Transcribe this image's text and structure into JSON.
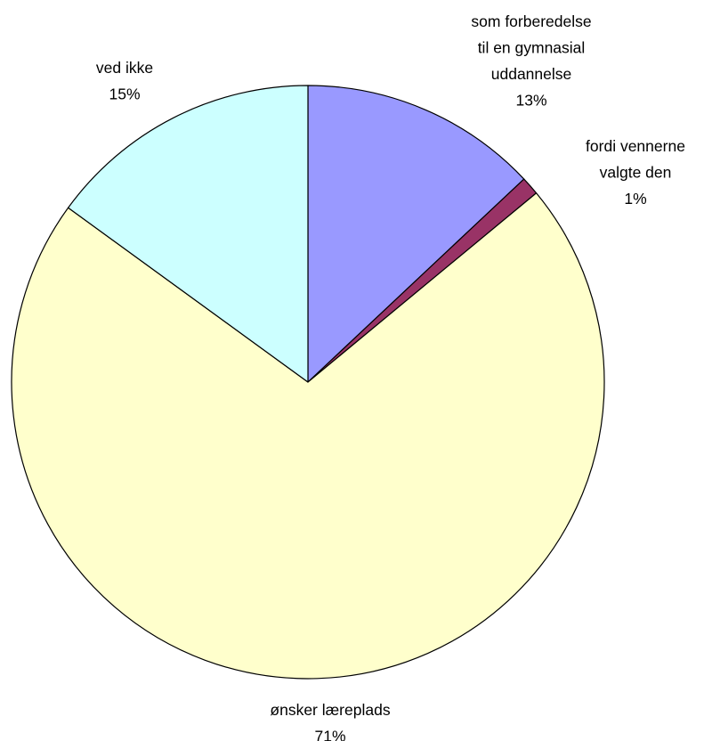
{
  "chart_data": {
    "type": "pie",
    "slices": [
      {
        "label_lines": [
          "som forberedelse",
          "til en gymnasial",
          "uddannelse"
        ],
        "percent_label": "13%",
        "value": 13,
        "color": "#9999ff"
      },
      {
        "label_lines": [
          "fordi vennerne",
          "valgte den"
        ],
        "percent_label": "1%",
        "value": 1,
        "color": "#993366"
      },
      {
        "label_lines": [
          "ønsker læreplads"
        ],
        "percent_label": "71%",
        "value": 71,
        "color": "#ffffcc"
      },
      {
        "label_lines": [
          "ved ikke"
        ],
        "percent_label": "15%",
        "value": 15,
        "color": "#ccffff"
      }
    ],
    "start": "12 o'clock",
    "direction": "clockwise"
  }
}
